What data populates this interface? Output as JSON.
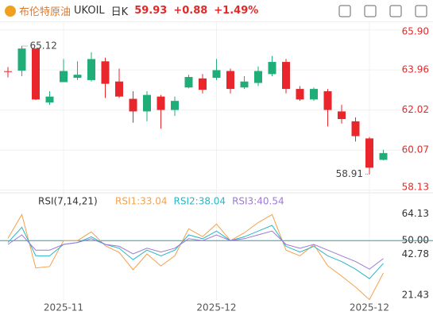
{
  "toolbar": {
    "name": "布伦特原油",
    "symbol": "UKOIL",
    "period": "日K",
    "price": "59.93",
    "change": "+0.88",
    "change_pct": "+1.49%"
  },
  "chart_data": [
    {
      "type": "candlestick",
      "categories": [
        null,
        null,
        null,
        null,
        "2025-11",
        null,
        null,
        null,
        null,
        null,
        null,
        null,
        null,
        null,
        null,
        "2025-12",
        null,
        null,
        null,
        null,
        null,
        null,
        null,
        null,
        null,
        null,
        "2025-12",
        null
      ],
      "open": [
        63.9,
        63.93,
        65.0,
        62.38,
        63.37,
        63.58,
        63.47,
        64.38,
        63.4,
        62.56,
        61.95,
        62.67,
        62.02,
        63.11,
        63.55,
        63.58,
        63.91,
        63.11,
        63.33,
        63.76,
        64.35,
        63.04,
        62.53,
        62.93,
        61.95,
        61.47,
        60.64,
        59.6
      ],
      "high": [
        64.1,
        65.12,
        65.0,
        62.93,
        64.49,
        64.38,
        64.82,
        64.56,
        64.02,
        62.93,
        62.93,
        62.75,
        62.67,
        63.73,
        63.76,
        64.49,
        64.02,
        63.66,
        64.13,
        64.64,
        64.49,
        63.18,
        63.11,
        63.04,
        62.27,
        61.66,
        60.71,
        60.09
      ],
      "low": [
        63.6,
        63.66,
        62.5,
        62.27,
        63.37,
        63.47,
        63.4,
        62.6,
        62.6,
        61.4,
        61.47,
        61.11,
        61.73,
        63.07,
        62.82,
        63.47,
        62.82,
        63.04,
        63.18,
        63.66,
        62.82,
        62.46,
        62.46,
        61.22,
        61.36,
        60.49,
        58.91,
        59.58
      ],
      "close": [
        63.9,
        65.0,
        62.53,
        62.67,
        63.91,
        63.73,
        64.49,
        63.29,
        62.67,
        61.95,
        62.75,
        62.02,
        62.46,
        63.62,
        63.0,
        63.95,
        63.04,
        63.4,
        63.91,
        64.35,
        63.04,
        62.53,
        63.04,
        62.02,
        61.58,
        60.75,
        59.22,
        59.93
      ],
      "up_color": "#1fae78",
      "down_color": "#e8262b",
      "annotations": [
        {
          "text": "65.12",
          "index": 1,
          "value": 65.12
        },
        {
          "text": "58.91",
          "index": 26,
          "value": 58.91
        }
      ],
      "ylim": [
        58.0,
        66.2
      ],
      "yticks": [
        {
          "value": 65.9,
          "label": "65.90"
        },
        63.96,
        62.02,
        60.07,
        58.13
      ],
      "grid": true
    },
    {
      "type": "line",
      "title": "RSI(7,14,21)",
      "series": [
        {
          "name": "RSI1:33.04",
          "color": "#f5a04a",
          "values": [
            51.2,
            63.7,
            35.6,
            36.4,
            50.0,
            50.0,
            54.6,
            47.3,
            43.8,
            34.7,
            43.0,
            36.7,
            42.0,
            56.2,
            52.1,
            58.7,
            50.0,
            54.1,
            59.5,
            63.7,
            45.0,
            42.0,
            47.9,
            36.8,
            31.4,
            25.6,
            19.0,
            33.04
          ]
        },
        {
          "name": "RSI2:38.04",
          "color": "#29b6c6",
          "values": [
            49,
            57,
            42,
            42,
            48,
            49,
            52,
            48,
            46,
            40,
            45,
            42,
            45,
            53,
            51,
            55,
            50,
            52,
            55,
            58,
            47,
            44,
            47,
            42,
            39,
            35,
            30,
            38.04
          ]
        },
        {
          "name": "RSI3:40.54",
          "color": "#9c7ad6",
          "values": [
            48,
            53,
            45,
            45,
            48,
            49,
            51,
            48,
            47,
            43,
            46,
            44,
            46,
            51,
            50,
            53,
            50,
            51,
            53,
            55,
            48,
            46,
            48,
            45,
            42,
            39,
            35,
            40.54
          ]
        }
      ],
      "ylim": [
        18,
        73
      ],
      "yticks": [
        64.13,
        {
          "value": 50,
          "label": "50.00"
        },
        42.78,
        21.43
      ],
      "reference_line": 50,
      "reference_color": "#2a9ea8"
    }
  ]
}
